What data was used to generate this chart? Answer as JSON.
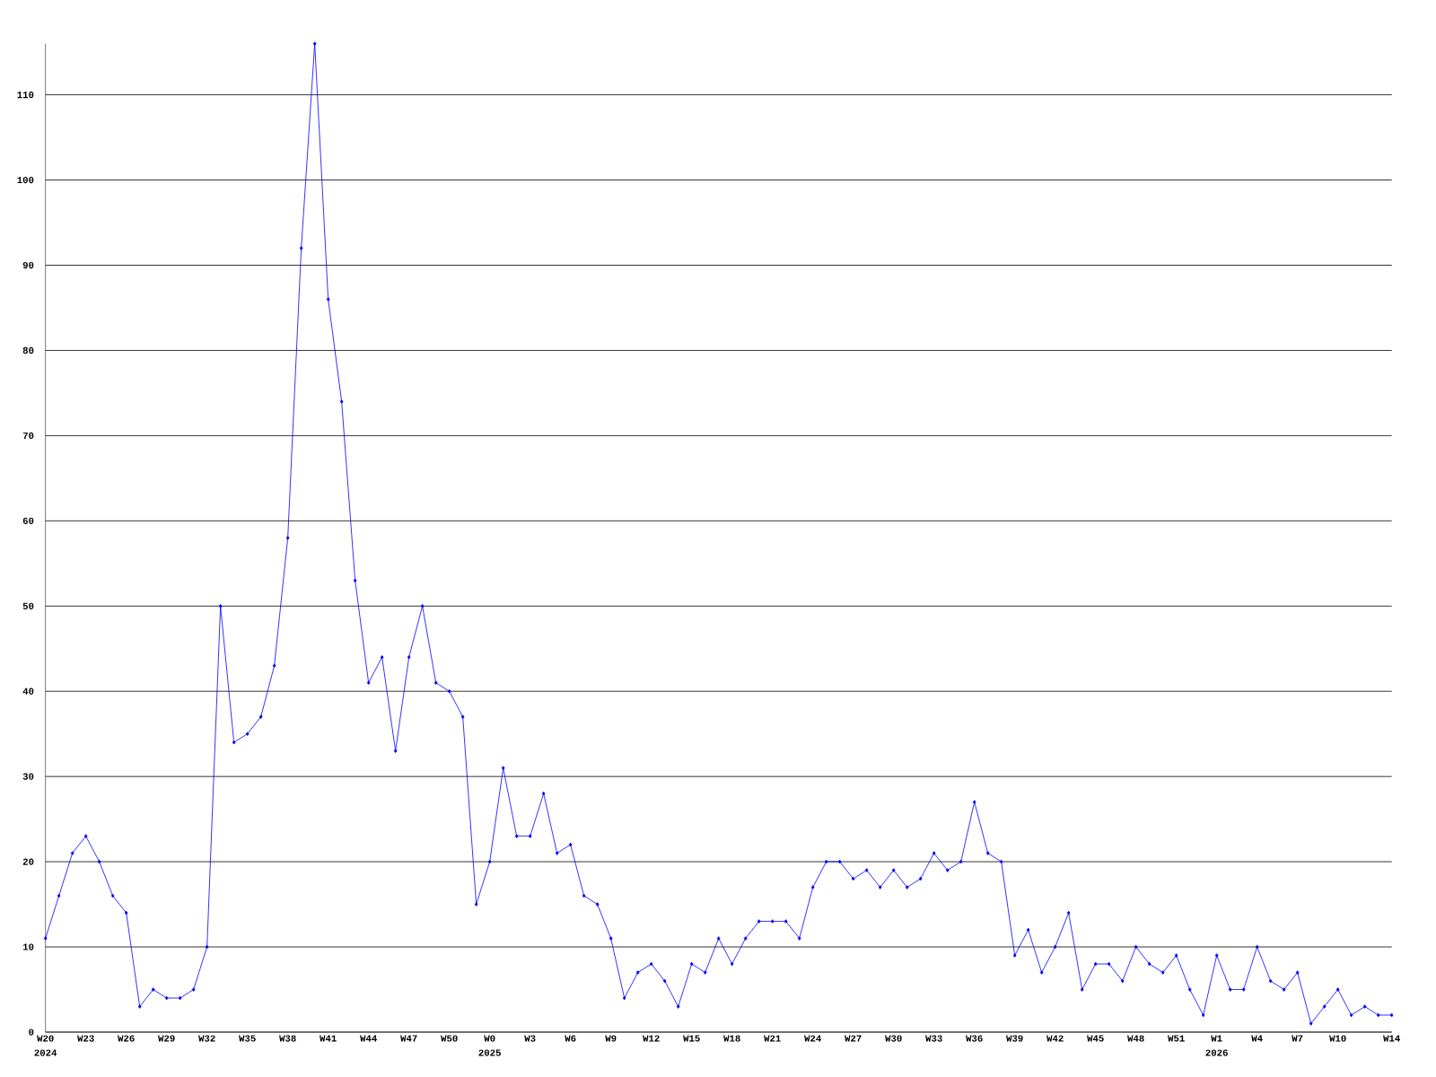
{
  "chart_data": {
    "type": "line",
    "color": "#0000ff",
    "marker": "diamond",
    "grid": "y",
    "categories": [
      "W20",
      null,
      null,
      "W23",
      null,
      null,
      "W26",
      null,
      null,
      "W29",
      null,
      null,
      "W32",
      null,
      null,
      "W35",
      null,
      null,
      "W38",
      null,
      null,
      "W41",
      null,
      null,
      "W44",
      null,
      null,
      "W47",
      null,
      null,
      "W50",
      null,
      null,
      "W0",
      null,
      null,
      "W3",
      null,
      null,
      "W6",
      null,
      null,
      "W9",
      null,
      null,
      "W12",
      null,
      null,
      "W15",
      null,
      null,
      "W18",
      null,
      null,
      "W21",
      null,
      null,
      "W24",
      null,
      null,
      "W27",
      null,
      null,
      "W30",
      null,
      null,
      "W33",
      null,
      null,
      "W36",
      null,
      null,
      "W39",
      null,
      null,
      "W42",
      null,
      null,
      "W45",
      null,
      null,
      "W48",
      null,
      null,
      "W51",
      null,
      null,
      "W1",
      null,
      null,
      "W4",
      null,
      null,
      "W7",
      null,
      null,
      "W10",
      null,
      null,
      null,
      "W14"
    ],
    "values": [
      11,
      16,
      21,
      23,
      20,
      16,
      14,
      3,
      5,
      4,
      4,
      5,
      10,
      50,
      34,
      35,
      37,
      43,
      58,
      92,
      116,
      86,
      74,
      53,
      41,
      44,
      33,
      44,
      50,
      41,
      40,
      37,
      15,
      20,
      31,
      23,
      23,
      28,
      21,
      22,
      16,
      15,
      11,
      4,
      7,
      8,
      6,
      3,
      8,
      7,
      11,
      8,
      11,
      13,
      13,
      13,
      11,
      17,
      20,
      20,
      18,
      19,
      17,
      19,
      17,
      18,
      21,
      19,
      20,
      27,
      21,
      20,
      9,
      12,
      7,
      10,
      14,
      5,
      8,
      8,
      6,
      10,
      8,
      7,
      9,
      5,
      2,
      9,
      5,
      5,
      10,
      6,
      5,
      7,
      1,
      3,
      5,
      2,
      3,
      2,
      2
    ],
    "ylim": [
      0,
      116
    ],
    "yticks": [
      0,
      10,
      20,
      30,
      40,
      50,
      60,
      70,
      80,
      90,
      100,
      110
    ],
    "annotations": [
      "2024",
      "2025",
      "2026"
    ]
  }
}
